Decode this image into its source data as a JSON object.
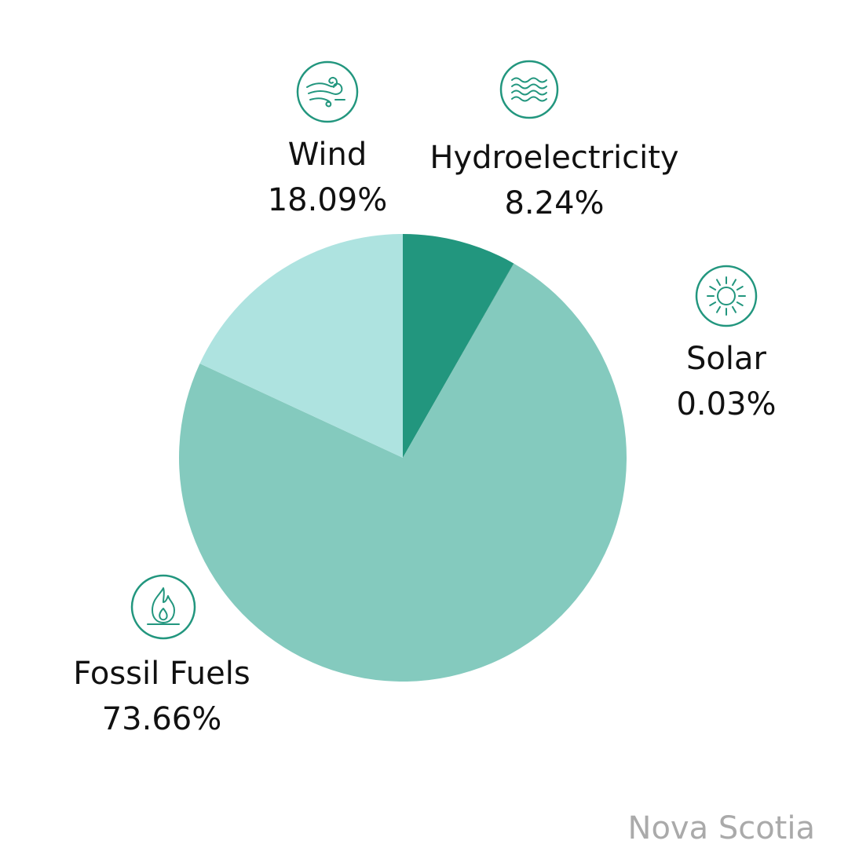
{
  "region_label": "Nova Scotia",
  "colors": {
    "hydroelectricity": "#22967E",
    "solar": "#1E8C76",
    "fossil_fuels": "#84CABE",
    "wind": "#AEE3E0",
    "icon_stroke": "#22967E",
    "region_text": "#AAAAAA"
  },
  "chart_data": {
    "type": "pie",
    "title": "",
    "start_angle": "12 o'clock",
    "direction": "clockwise",
    "slices": [
      {
        "key": "hydro",
        "label": "Hydroelectricity",
        "value": 8.24,
        "value_label": "8.24%",
        "color": "#22967E",
        "icon": "water-waves-icon"
      },
      {
        "key": "solar",
        "label": "Solar",
        "value": 0.03,
        "value_label": "0.03%",
        "color": "#1E8C76",
        "icon": "sun-icon"
      },
      {
        "key": "fossil",
        "label": "Fossil Fuels",
        "value": 73.66,
        "value_label": "73.66%",
        "color": "#84CABE",
        "icon": "flame-icon"
      },
      {
        "key": "wind",
        "label": "Wind",
        "value": 18.09,
        "value_label": "18.09%",
        "color": "#AEE3E0",
        "icon": "wind-icon"
      }
    ]
  }
}
